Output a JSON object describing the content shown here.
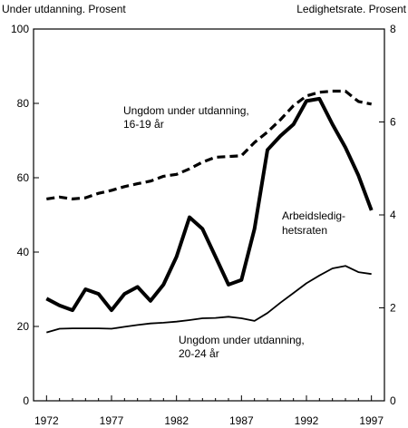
{
  "chart_data": {
    "type": "line",
    "title": "",
    "y_left_label": "Under utdanning. Prosent",
    "y_right_label": "Ledighetsrate. Prosent",
    "ylim_left": [
      0,
      100
    ],
    "ylim_right": [
      0,
      8
    ],
    "xlim": [
      1971,
      1998
    ],
    "x_tick_labels": [
      "1972",
      "1977",
      "1982",
      "1987",
      "1992",
      "1997"
    ],
    "y_left_ticks": [
      "0",
      "20",
      "40",
      "60",
      "80",
      "100"
    ],
    "y_right_ticks": [
      "0",
      "2",
      "4",
      "6",
      "8"
    ],
    "grid": false,
    "legend": "none",
    "series": [
      {
        "label": "Ungdom under utdanning,\n16-19 år",
        "axis": "left",
        "style": "dashed",
        "x": [
          1972,
          1973,
          1974,
          1975,
          1976,
          1977,
          1978,
          1979,
          1980,
          1981,
          1982,
          1983,
          1984,
          1985,
          1986,
          1987,
          1988,
          1989,
          1990,
          1991,
          1992,
          1993,
          1994,
          1995,
          1996,
          1997
        ],
        "y": [
          54.3,
          54.8,
          54.3,
          54.6,
          55.8,
          56.6,
          57.6,
          58.4,
          59.1,
          60.4,
          60.9,
          62.4,
          64.2,
          65.5,
          65.7,
          65.9,
          69.5,
          72.3,
          75.6,
          79.4,
          82.0,
          83.0,
          83.3,
          83.3,
          80.5,
          79.8
        ]
      },
      {
        "label": "Arbeidsledig-\nhetsraten",
        "axis": "right",
        "style": "solid-thick",
        "x": [
          1972,
          1973,
          1974,
          1975,
          1976,
          1977,
          1978,
          1979,
          1980,
          1981,
          1982,
          1983,
          1984,
          1985,
          1986,
          1987,
          1988,
          1989,
          1990,
          1991,
          1992,
          1993,
          1994,
          1995,
          1996,
          1997
        ],
        "y": [
          2.2,
          2.05,
          1.95,
          2.4,
          2.3,
          1.95,
          2.3,
          2.45,
          2.15,
          2.5,
          3.1,
          3.95,
          3.7,
          3.1,
          2.5,
          2.6,
          3.7,
          5.4,
          5.7,
          5.95,
          6.45,
          6.5,
          5.95,
          5.45,
          4.85,
          4.1
        ]
      },
      {
        "label": "Ungdom under utdanning,\n20-24 år",
        "axis": "left",
        "style": "solid-thin",
        "x": [
          1972,
          1973,
          1974,
          1975,
          1976,
          1977,
          1978,
          1979,
          1980,
          1981,
          1982,
          1983,
          1984,
          1985,
          1986,
          1987,
          1988,
          1989,
          1990,
          1991,
          1992,
          1993,
          1994,
          1995,
          1996,
          1997
        ],
        "y": [
          18.4,
          19.4,
          19.5,
          19.5,
          19.5,
          19.4,
          19.9,
          20.4,
          20.8,
          21.0,
          21.3,
          21.7,
          22.2,
          22.3,
          22.6,
          22.2,
          21.5,
          23.6,
          26.4,
          29.0,
          31.6,
          33.7,
          35.6,
          36.3,
          34.6,
          34.1
        ]
      }
    ]
  }
}
